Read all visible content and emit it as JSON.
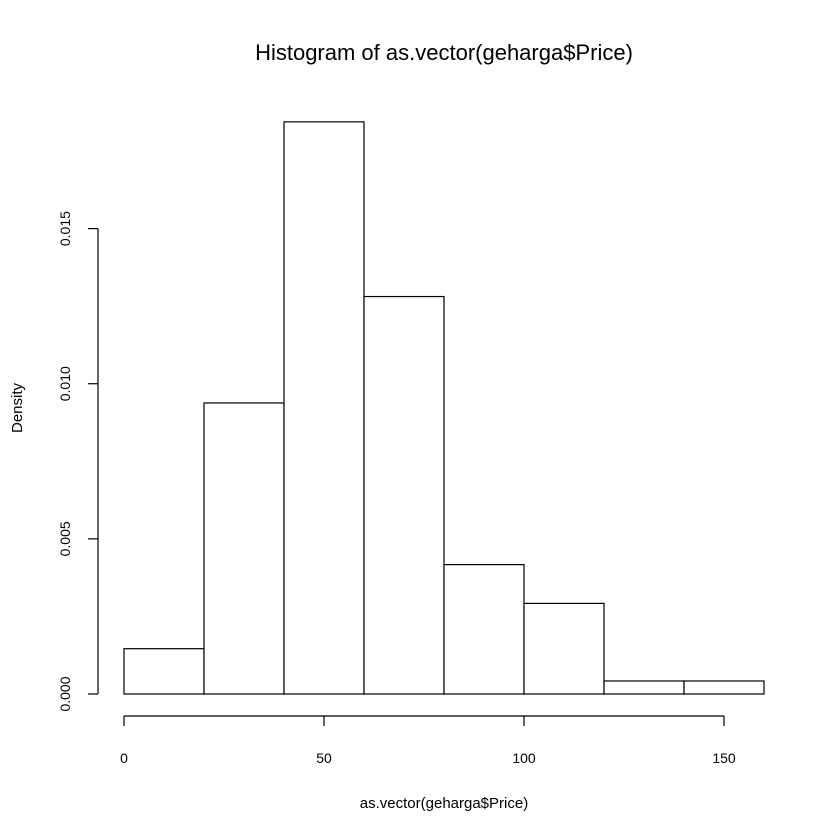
{
  "chart_data": {
    "type": "bar",
    "title": "Histogram of as.vector(geharga$Price)",
    "xlabel": "as.vector(geharga$Price)",
    "ylabel": "Density",
    "bins": [
      {
        "from": 0,
        "to": 20,
        "density": 0.00146
      },
      {
        "from": 20,
        "to": 40,
        "density": 0.00938
      },
      {
        "from": 40,
        "to": 60,
        "density": 0.01844
      },
      {
        "from": 60,
        "to": 80,
        "density": 0.01281
      },
      {
        "from": 80,
        "to": 100,
        "density": 0.00417
      },
      {
        "from": 100,
        "to": 120,
        "density": 0.00292
      },
      {
        "from": 120,
        "to": 140,
        "density": 0.00042
      },
      {
        "from": 140,
        "to": 160,
        "density": 0.00042
      }
    ],
    "xlim": [
      0,
      160
    ],
    "ylim": [
      0,
      0.0185
    ],
    "x_ticks": [
      0,
      50,
      100,
      150
    ],
    "x_tick_labels": [
      "0",
      "50",
      "100",
      "150"
    ],
    "y_ticks": [
      0,
      0.005,
      0.01,
      0.015
    ],
    "y_tick_labels": [
      "0.000",
      "0.005",
      "0.010",
      "0.015"
    ],
    "grid": false,
    "legend": "none",
    "bar_fill": "#ffffff",
    "bar_stroke": "#000000"
  }
}
